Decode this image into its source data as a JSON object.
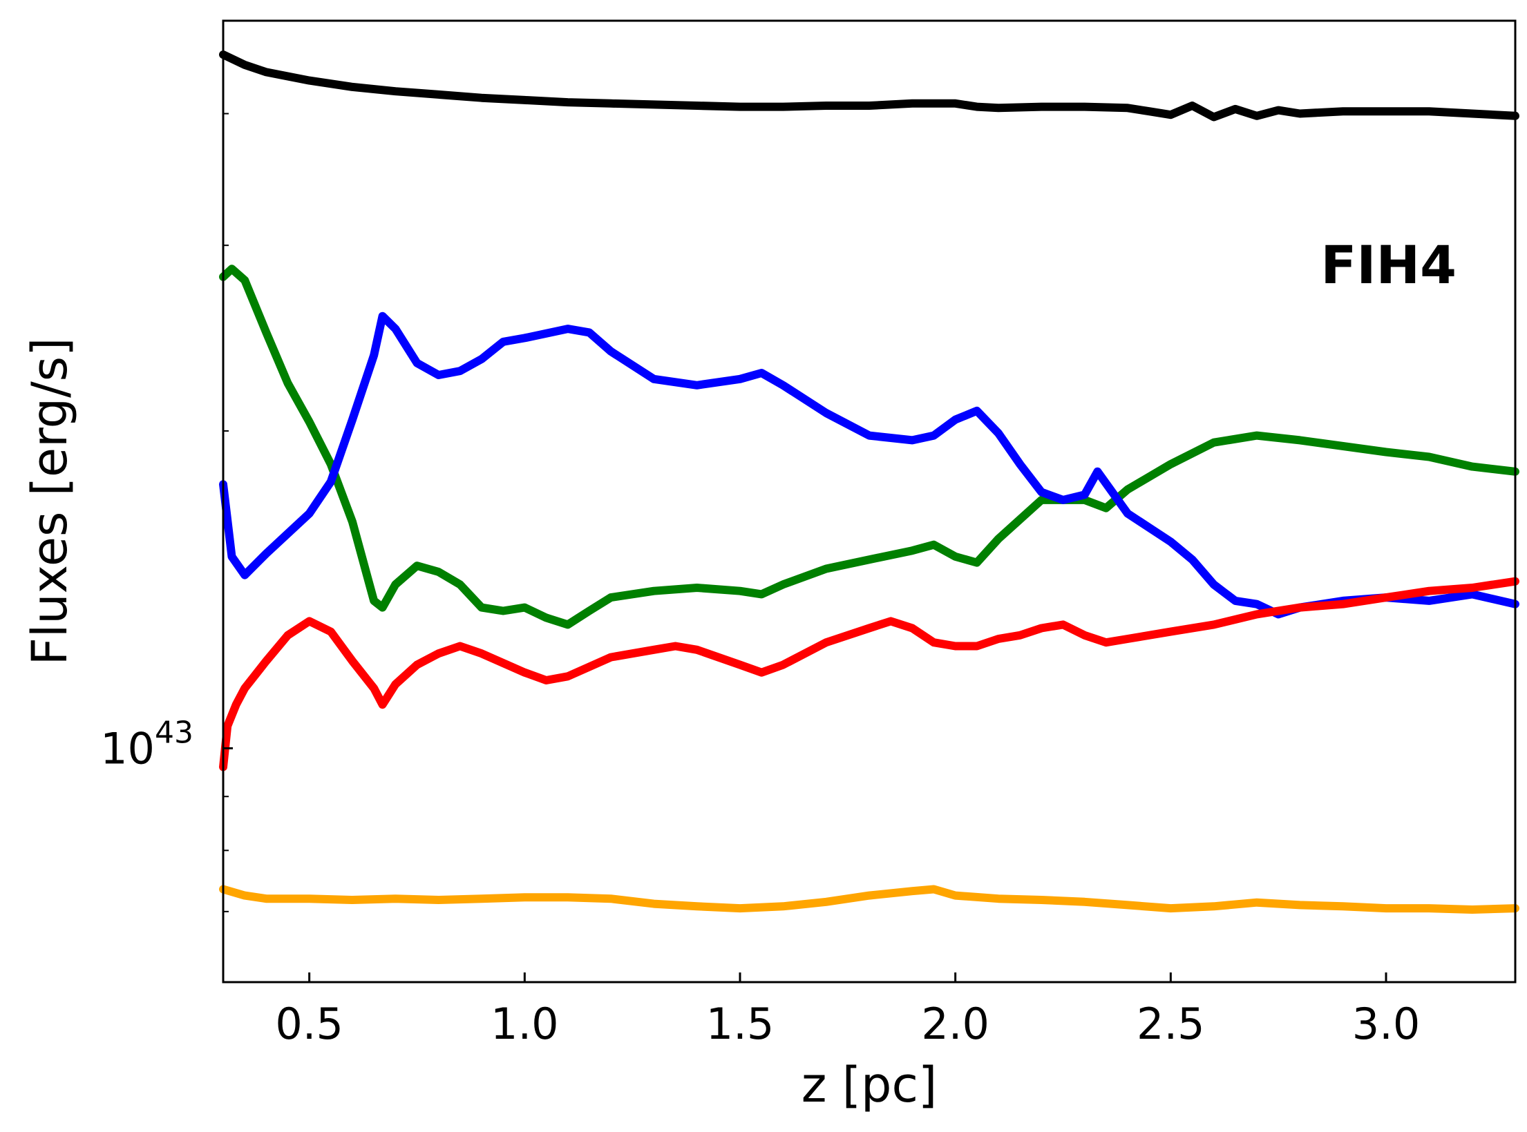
{
  "chart_data": {
    "type": "line",
    "title": "",
    "xlabel": "z [pc]",
    "ylabel": "Fluxes [erg/s]",
    "annotation": "FIH4",
    "xlim": [
      0.3,
      3.3
    ],
    "ylim": [
      6e+42,
      4.9e+43
    ],
    "yscale": "log",
    "grid": false,
    "legend": "none",
    "x_ticks": [
      0.5,
      1.0,
      1.5,
      2.0,
      2.5,
      3.0
    ],
    "x_tick_labels": [
      "0.5",
      "1.0",
      "1.5",
      "2.0",
      "2.5",
      "3.0"
    ],
    "y_major_ticks": [
      1e+43
    ],
    "y_major_tick_labels": [
      {
        "base": "10",
        "exp": "43"
      }
    ],
    "y_minor_ticks": [
      7e+42,
      8e+42,
      9e+42,
      2e+43,
      3e+43,
      4e+43
    ],
    "series": [
      {
        "color": "#000000",
        "x": [
          0.3,
          0.35,
          0.4,
          0.5,
          0.6,
          0.7,
          0.8,
          0.9,
          1.0,
          1.1,
          1.2,
          1.3,
          1.4,
          1.5,
          1.6,
          1.7,
          1.8,
          1.9,
          2.0,
          2.05,
          2.1,
          2.2,
          2.3,
          2.4,
          2.45,
          2.5,
          2.55,
          2.6,
          2.65,
          2.7,
          2.75,
          2.8,
          2.9,
          3.0,
          3.1,
          3.2,
          3.3
        ],
        "y": [
          4.55e+43,
          4.45e+43,
          4.38e+43,
          4.3e+43,
          4.24e+43,
          4.2e+43,
          4.17e+43,
          4.14e+43,
          4.12e+43,
          4.1e+43,
          4.09e+43,
          4.08e+43,
          4.07e+43,
          4.06e+43,
          4.06e+43,
          4.07e+43,
          4.07e+43,
          4.09e+43,
          4.09e+43,
          4.06e+43,
          4.05e+43,
          4.06e+43,
          4.06e+43,
          4.05e+43,
          4.02e+43,
          3.99e+43,
          4.07e+43,
          3.97e+43,
          4.04e+43,
          3.98e+43,
          4.03e+43,
          4e+43,
          4.02e+43,
          4.02e+43,
          4.02e+43,
          4e+43,
          3.98e+43
        ]
      },
      {
        "color": "#008000",
        "x": [
          0.3,
          0.32,
          0.35,
          0.4,
          0.45,
          0.5,
          0.55,
          0.6,
          0.65,
          0.67,
          0.7,
          0.75,
          0.8,
          0.85,
          0.9,
          0.95,
          1.0,
          1.05,
          1.1,
          1.15,
          1.2,
          1.3,
          1.4,
          1.5,
          1.55,
          1.6,
          1.7,
          1.8,
          1.9,
          1.95,
          2.0,
          2.05,
          2.1,
          2.2,
          2.3,
          2.35,
          2.4,
          2.5,
          2.6,
          2.7,
          2.8,
          3.0,
          3.1,
          3.2,
          3.3
        ],
        "y": [
          2.8e+43,
          2.85e+43,
          2.78e+43,
          2.48e+43,
          2.22e+43,
          2.04e+43,
          1.86e+43,
          1.64e+43,
          1.38e+43,
          1.36e+43,
          1.43e+43,
          1.49e+43,
          1.47e+43,
          1.43e+43,
          1.36e+43,
          1.35e+43,
          1.36e+43,
          1.33e+43,
          1.31e+43,
          1.35e+43,
          1.39e+43,
          1.41e+43,
          1.42e+43,
          1.41e+43,
          1.4e+43,
          1.43e+43,
          1.48e+43,
          1.51e+43,
          1.54e+43,
          1.56e+43,
          1.52e+43,
          1.5e+43,
          1.58e+43,
          1.72e+43,
          1.72e+43,
          1.69e+43,
          1.76e+43,
          1.86e+43,
          1.95e+43,
          1.98e+43,
          1.96e+43,
          1.91e+43,
          1.89e+43,
          1.85e+43,
          1.83e+43
        ]
      },
      {
        "color": "#0000ff",
        "x": [
          0.3,
          0.32,
          0.35,
          0.4,
          0.5,
          0.55,
          0.6,
          0.65,
          0.67,
          0.7,
          0.75,
          0.8,
          0.85,
          0.9,
          0.95,
          1.0,
          1.1,
          1.15,
          1.2,
          1.3,
          1.4,
          1.5,
          1.55,
          1.6,
          1.7,
          1.8,
          1.9,
          1.95,
          2.0,
          2.05,
          2.1,
          2.15,
          2.2,
          2.25,
          2.3,
          2.33,
          2.4,
          2.5,
          2.55,
          2.6,
          2.65,
          2.7,
          2.75,
          2.8,
          2.9,
          3.0,
          3.1,
          3.2,
          3.3
        ],
        "y": [
          1.78e+43,
          1.52e+43,
          1.46e+43,
          1.53e+43,
          1.67e+43,
          1.79e+43,
          2.05e+43,
          2.36e+43,
          2.57e+43,
          2.5e+43,
          2.32e+43,
          2.26e+43,
          2.28e+43,
          2.34e+43,
          2.43e+43,
          2.45e+43,
          2.5e+43,
          2.48e+43,
          2.38e+43,
          2.24e+43,
          2.21e+43,
          2.24e+43,
          2.27e+43,
          2.21e+43,
          2.08e+43,
          1.98e+43,
          1.96e+43,
          1.98e+43,
          2.05e+43,
          2.09e+43,
          1.99e+43,
          1.86e+43,
          1.75e+43,
          1.72e+43,
          1.74e+43,
          1.83e+43,
          1.67e+43,
          1.57e+43,
          1.51e+43,
          1.43e+43,
          1.38e+43,
          1.37e+43,
          1.34e+43,
          1.36e+43,
          1.38e+43,
          1.39e+43,
          1.38e+43,
          1.4e+43,
          1.37e+43
        ]
      },
      {
        "color": "#ff0000",
        "x": [
          0.3,
          0.31,
          0.33,
          0.35,
          0.4,
          0.45,
          0.5,
          0.55,
          0.6,
          0.65,
          0.67,
          0.7,
          0.75,
          0.8,
          0.85,
          0.9,
          1.0,
          1.05,
          1.1,
          1.2,
          1.3,
          1.35,
          1.4,
          1.5,
          1.55,
          1.6,
          1.7,
          1.8,
          1.85,
          1.9,
          1.95,
          2.0,
          2.05,
          2.1,
          2.15,
          2.2,
          2.25,
          2.3,
          2.35,
          2.4,
          2.5,
          2.6,
          2.7,
          2.8,
          2.9,
          3.0,
          3.1,
          3.2,
          3.3
        ],
        "y": [
          9.6e+42,
          1.05e+43,
          1.1e+43,
          1.14e+43,
          1.21e+43,
          1.28e+43,
          1.32e+43,
          1.29e+43,
          1.21e+43,
          1.14e+43,
          1.1e+43,
          1.15e+43,
          1.2e+43,
          1.23e+43,
          1.25e+43,
          1.23e+43,
          1.18e+43,
          1.16e+43,
          1.17e+43,
          1.22e+43,
          1.24e+43,
          1.25e+43,
          1.24e+43,
          1.2e+43,
          1.18e+43,
          1.2e+43,
          1.26e+43,
          1.3e+43,
          1.32e+43,
          1.3e+43,
          1.26e+43,
          1.25e+43,
          1.25e+43,
          1.27e+43,
          1.28e+43,
          1.3e+43,
          1.31e+43,
          1.28e+43,
          1.26e+43,
          1.27e+43,
          1.29e+43,
          1.31e+43,
          1.34e+43,
          1.36e+43,
          1.37e+43,
          1.39e+43,
          1.41e+43,
          1.42e+43,
          1.44e+43
        ]
      },
      {
        "color": "#ffa500",
        "x": [
          0.3,
          0.35,
          0.4,
          0.5,
          0.6,
          0.7,
          0.8,
          0.9,
          1.0,
          1.1,
          1.2,
          1.3,
          1.4,
          1.5,
          1.6,
          1.7,
          1.8,
          1.9,
          1.95,
          2.0,
          2.1,
          2.2,
          2.3,
          2.4,
          2.5,
          2.6,
          2.7,
          2.8,
          2.9,
          3.0,
          3.1,
          3.2,
          3.3
        ],
        "y": [
          7.35e+42,
          7.25e+42,
          7.2e+42,
          7.2e+42,
          7.18e+42,
          7.2e+42,
          7.18e+42,
          7.2e+42,
          7.22e+42,
          7.22e+42,
          7.2e+42,
          7.12e+42,
          7.08e+42,
          7.05e+42,
          7.08e+42,
          7.15e+42,
          7.25e+42,
          7.32e+42,
          7.35e+42,
          7.25e+42,
          7.2e+42,
          7.18e+42,
          7.15e+42,
          7.1e+42,
          7.05e+42,
          7.08e+42,
          7.14e+42,
          7.1e+42,
          7.08e+42,
          7.05e+42,
          7.05e+42,
          7.03e+42,
          7.05e+42
        ]
      }
    ]
  }
}
